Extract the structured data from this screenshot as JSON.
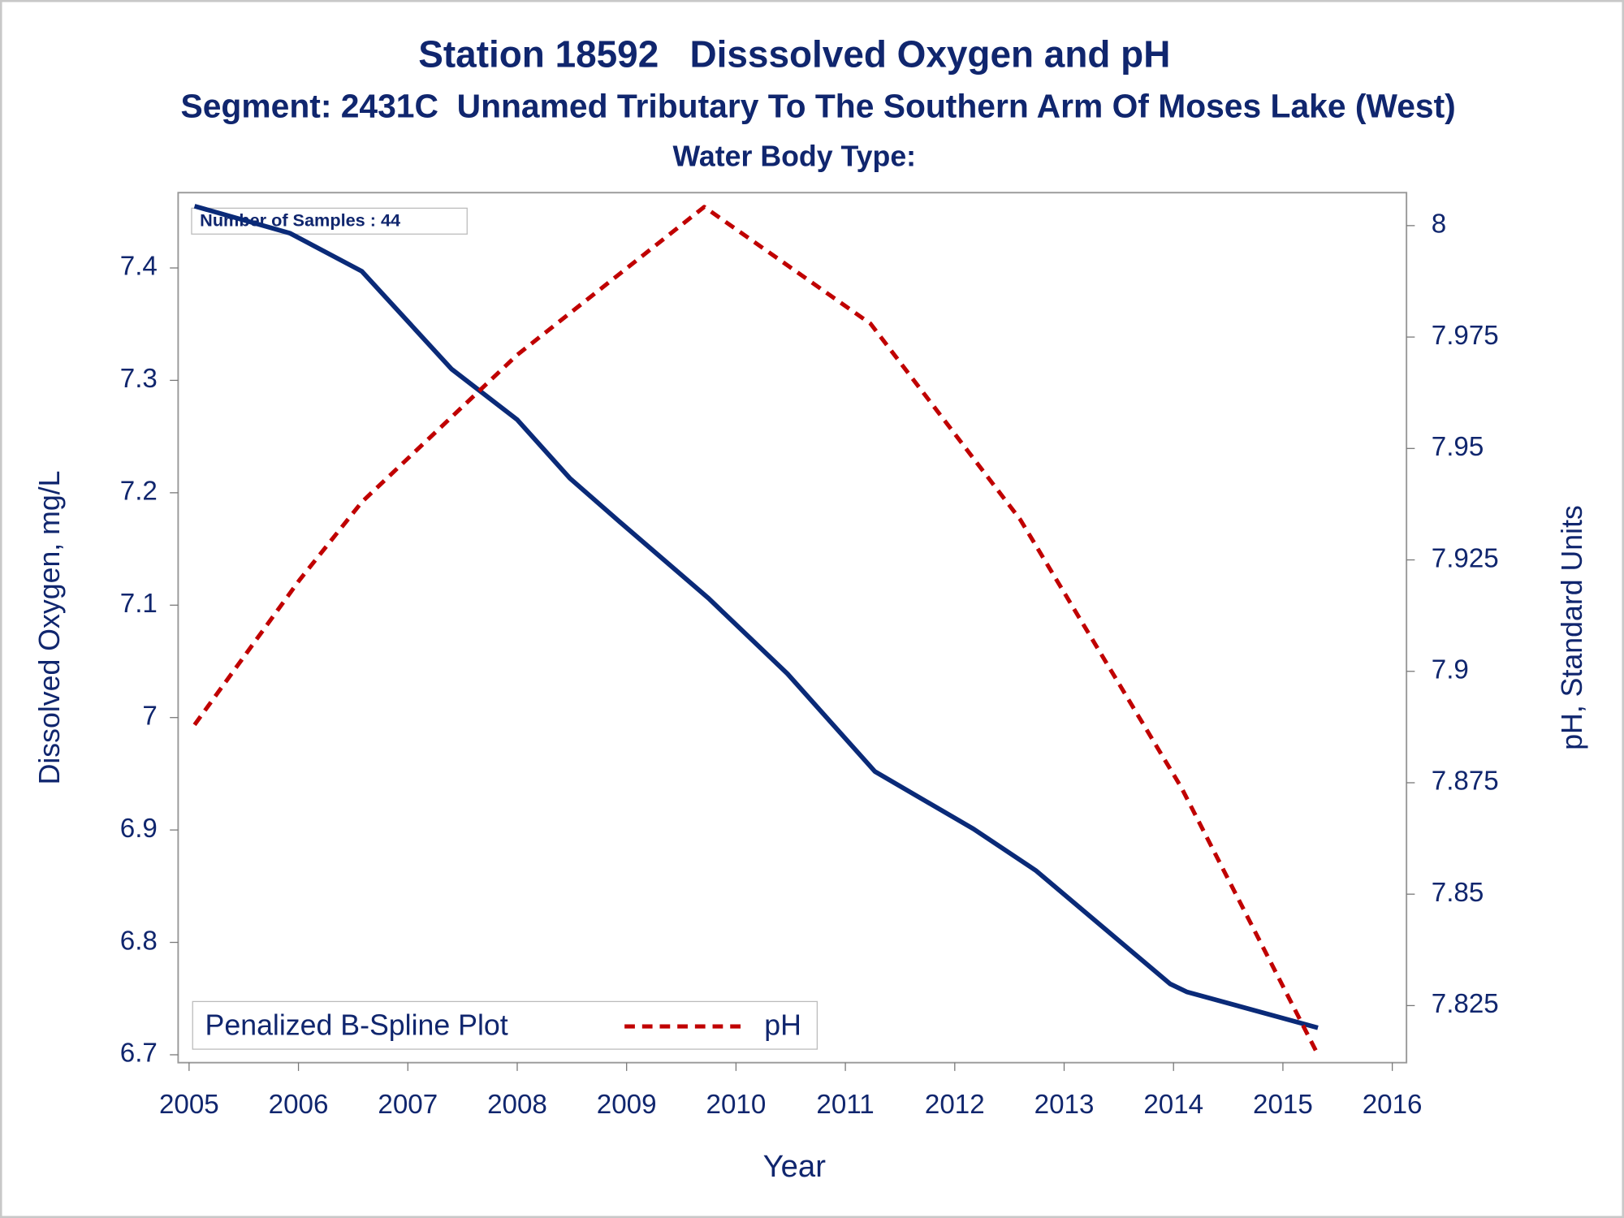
{
  "chart_data": {
    "type": "line",
    "title": "Station 18592   Disssolved Oxygen and pH",
    "subtitle": "Segment: 2431C  Unnamed Tributary To The Southern Arm Of Moses Lake (West)",
    "subtitle2": "Water Body Type:",
    "x_label": "Year",
    "y_label": "Dissolved Oxygen, mg/L",
    "y2_label": "pH, Standard Units",
    "annotation": "Number of Samples : 44",
    "legend_title": "Penalized B-Spline Plot",
    "legend": "bottom-left",
    "xlim": [
      2004.9,
      2016.13
    ],
    "xticks": [
      2005,
      2006,
      2007,
      2008,
      2009,
      2010,
      2011,
      2012,
      2013,
      2014,
      2015,
      2016
    ],
    "ylim": [
      6.693,
      7.467
    ],
    "yticks": [
      6.7,
      6.8,
      6.9,
      7,
      7.1,
      7.2,
      7.3,
      7.4
    ],
    "y2lim": [
      7.8122,
      8.0074
    ],
    "y2ticks": [
      7.825,
      7.85,
      7.875,
      7.9,
      7.925,
      7.95,
      7.975,
      8
    ],
    "series": [
      {
        "color": "#0a2a78",
        "dash": false,
        "x": [
          2005.05,
          2005.92,
          2006.58,
          2007.4,
          2008.0,
          2008.48,
          2008.95,
          2009.75,
          2010.47,
          2011.27,
          2012.17,
          2012.74,
          2013.97,
          2014.12,
          2015.32
        ],
        "values": [
          7.455,
          7.431,
          7.397,
          7.31,
          7.265,
          7.213,
          7.173,
          7.106,
          7.039,
          6.952,
          6.901,
          6.864,
          6.763,
          6.756,
          6.724
        ]
      },
      {
        "name": "pH",
        "color": "#c00000",
        "dash": true,
        "axis": "y2",
        "x": [
          2005.05,
          2006.01,
          2006.58,
          2008.0,
          2009.71,
          2011.23,
          2012.6,
          2014.07,
          2015.32
        ],
        "values": [
          7.888,
          7.9205,
          7.938,
          7.971,
          8.0042,
          7.978,
          7.934,
          7.874,
          7.814
        ]
      }
    ]
  }
}
